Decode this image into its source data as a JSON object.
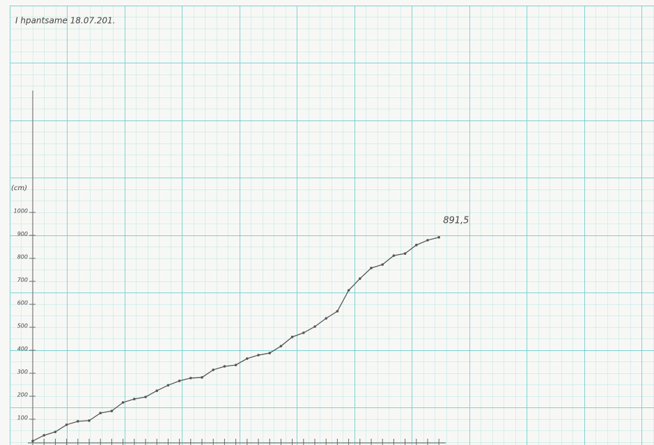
{
  "chart_data": {
    "type": "line",
    "title": "I hpantsame 18.07.201.",
    "y_label": "(cm)",
    "categories": [
      null,
      null,
      null,
      null,
      null,
      null,
      null,
      null,
      null,
      null,
      null,
      null,
      null,
      null,
      null,
      null,
      null,
      null,
      null,
      null,
      null,
      null,
      null,
      null,
      null,
      null,
      null,
      null,
      null,
      null,
      null,
      null,
      null,
      null,
      null,
      null,
      null
    ],
    "series": [
      {
        "color": "#555555",
        "values": [
          5,
          30,
          45,
          76,
          91,
          94,
          127,
          136,
          173,
          188,
          197,
          224,
          248,
          267,
          279,
          282,
          315,
          330,
          336,
          364,
          379,
          388,
          418,
          458,
          476,
          503,
          539,
          570,
          661,
          712,
          758,
          773,
          812,
          821,
          858,
          879,
          891.5
        ],
        "value_labels": [
          null,
          null,
          null,
          null,
          null,
          null,
          null,
          null,
          null,
          null,
          null,
          null,
          null,
          null,
          null,
          null,
          null,
          null,
          null,
          null,
          null,
          null,
          null,
          null,
          null,
          null,
          null,
          null,
          null,
          null,
          null,
          null,
          null,
          null,
          null,
          null,
          "891,5"
        ]
      }
    ],
    "ylim": [
      0,
      1000
    ],
    "yticks": [
      100,
      200,
      300,
      400,
      500,
      600,
      700,
      800,
      900,
      1000
    ]
  }
}
